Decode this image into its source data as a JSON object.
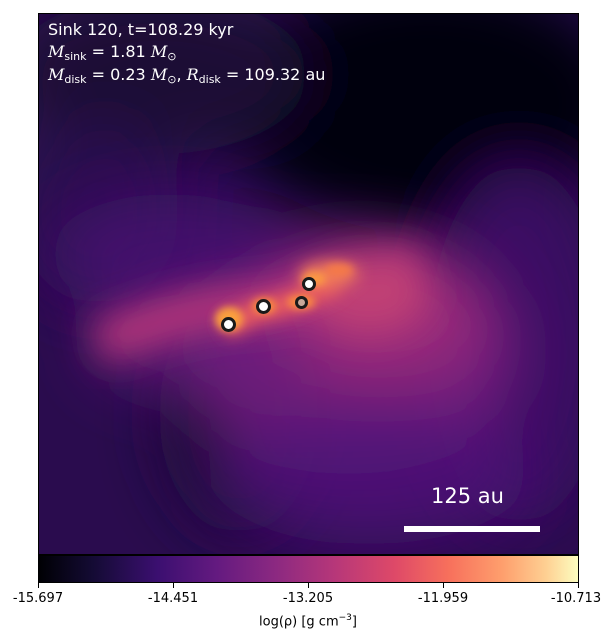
{
  "annotation": {
    "line1": "Sink 120, t=108.29 kyr",
    "mass_sink_symbol": "M",
    "mass_sink_sub": "sink",
    "mass_sink_value": " = 1.81 ",
    "mass_unit_symbol": "M",
    "mass_unit_sub": "⊙",
    "mass_disk_symbol": "M",
    "mass_disk_sub": "disk",
    "mass_disk_value": " = 0.23 ",
    "radius_disk_symbol": "R",
    "radius_disk_sub": "disk",
    "radius_disk_value": " = 109.32 au"
  },
  "scale_bar": {
    "label": "125 au"
  },
  "colorbar": {
    "label": "log(ρ) [g cm",
    "label_exp": "−3",
    "label_end": "]",
    "colormap": "inferno",
    "ticks": [
      "-15.697",
      "-14.451",
      "-13.205",
      "-11.959",
      "-10.713"
    ]
  },
  "sinks": [
    {
      "name": "sink-1",
      "fill": "#ffffff"
    },
    {
      "name": "sink-2",
      "fill": "#ffffff"
    },
    {
      "name": "sink-3",
      "fill": "#c8a89a"
    },
    {
      "name": "sink-4",
      "fill": "#ffffff"
    }
  ]
}
